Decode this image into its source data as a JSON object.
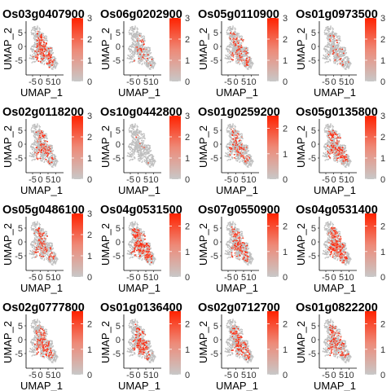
{
  "chart_data": {
    "type": "scatter",
    "layout": "4x4 facet grid",
    "xlabel": "UMAP_1",
    "ylabel": "UMAP_2",
    "x_ticks": [
      "-5",
      "0",
      "5",
      "10"
    ],
    "y_ticks": [
      "5",
      "0",
      "-5"
    ],
    "point_color_background": "#bebebe",
    "point_color_low": "#c8c8c8",
    "point_color_high": "#ff2200",
    "panels": [
      {
        "gene": "Os03g0407900",
        "cb_max": 3,
        "cb_ticks": [
          "3",
          "2",
          "1",
          "0"
        ],
        "expression_level": 0.55
      },
      {
        "gene": "Os06g0202900",
        "cb_max": 3,
        "cb_ticks": [
          "3",
          "2",
          "1",
          "0"
        ],
        "expression_level": 0.12
      },
      {
        "gene": "Os05g0110900",
        "cb_max": 3,
        "cb_ticks": [
          "3",
          "2",
          "1",
          "0"
        ],
        "expression_level": 0.35
      },
      {
        "gene": "Os01g0973500",
        "cb_max": 3,
        "cb_ticks": [
          "3",
          "2",
          "1",
          "0"
        ],
        "expression_level": 0.1
      },
      {
        "gene": "Os02g0118200",
        "cb_max": 3,
        "cb_ticks": [
          "3",
          "2",
          "1",
          "0"
        ],
        "expression_level": 0.3
      },
      {
        "gene": "Os10g0442800",
        "cb_max": 3,
        "cb_ticks": [
          "3",
          "2",
          "1",
          "0"
        ],
        "expression_level": 0.02
      },
      {
        "gene": "Os01g0259200",
        "cb_max": 2.5,
        "cb_ticks": [
          "2",
          "1",
          "0"
        ],
        "expression_level": 0.3
      },
      {
        "gene": "Os05g0135800",
        "cb_max": 3,
        "cb_ticks": [
          "3",
          "2",
          "1",
          "0"
        ],
        "expression_level": 0.45
      },
      {
        "gene": "Os05g0486100",
        "cb_max": 3,
        "cb_ticks": [
          "3",
          "2",
          "1",
          "0"
        ],
        "expression_level": 0.35
      },
      {
        "gene": "Os04g0531500",
        "cb_max": 2.5,
        "cb_ticks": [
          "2",
          "1",
          "0"
        ],
        "expression_level": 0.65
      },
      {
        "gene": "Os07g0550900",
        "cb_max": 2.5,
        "cb_ticks": [
          "2",
          "1",
          "0"
        ],
        "expression_level": 0.4
      },
      {
        "gene": "Os04g0531400",
        "cb_max": 2.5,
        "cb_ticks": [
          "2",
          "1",
          "0"
        ],
        "expression_level": 0.7
      },
      {
        "gene": "Os02g0777800",
        "cb_max": 2.5,
        "cb_ticks": [
          "2",
          "1",
          "0"
        ],
        "expression_level": 0.4
      },
      {
        "gene": "Os01g0136400",
        "cb_max": 2.5,
        "cb_ticks": [
          "2",
          "1",
          "0"
        ],
        "expression_level": 0.4
      },
      {
        "gene": "Os02g0712700",
        "cb_max": 2.5,
        "cb_ticks": [
          "2",
          "1",
          "0"
        ],
        "expression_level": 0.4
      },
      {
        "gene": "Os01g0822200",
        "cb_max": 2.5,
        "cb_ticks": [
          "2",
          "1",
          "0"
        ],
        "expression_level": 0.4
      }
    ]
  }
}
